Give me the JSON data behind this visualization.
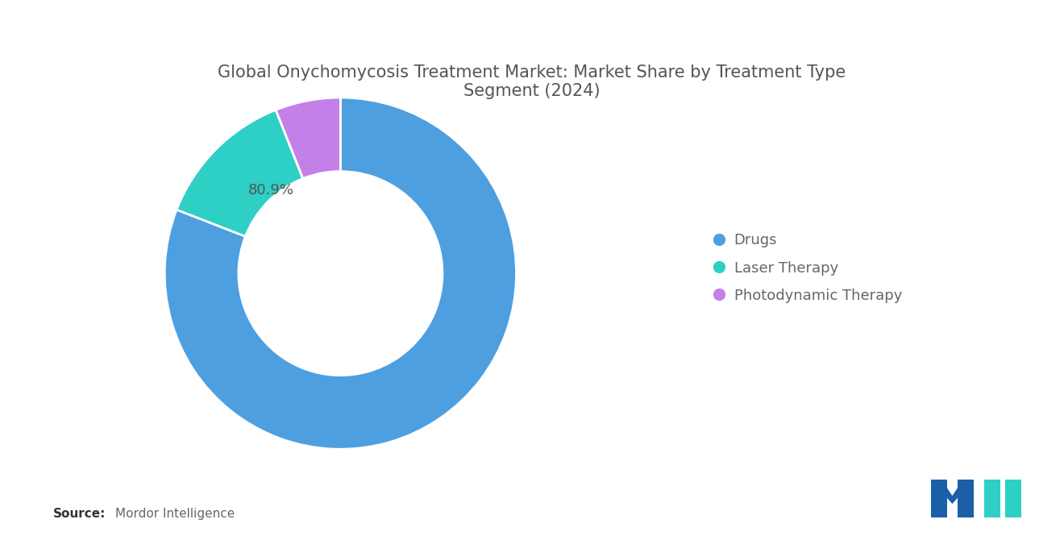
{
  "title": "Global Onychomycosis Treatment Market: Market Share by Treatment Type\nSegment (2024)",
  "segments": [
    "Drugs",
    "Laser Therapy",
    "Photodynamic Therapy"
  ],
  "values": [
    80.9,
    13.1,
    6.0
  ],
  "colors": [
    "#4e9fe0",
    "#2ecfc5",
    "#c380e8"
  ],
  "label_text": "80.9%",
  "source_bold": "Source:",
  "source_normal": "  Mordor Intelligence",
  "background_color": "#ffffff",
  "title_color": "#555555",
  "title_fontsize": 15,
  "legend_fontsize": 13,
  "donut_width": 0.42,
  "label_color": "#555555",
  "label_fontsize": 13
}
